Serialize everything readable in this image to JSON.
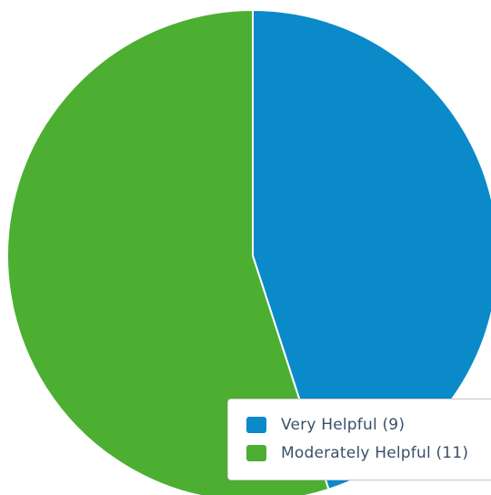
{
  "chart_data": {
    "type": "pie",
    "categories": [
      "Very Helpful",
      "Moderately Helpful"
    ],
    "values": [
      9,
      11
    ],
    "colors": [
      "#0a8ac8",
      "#4caf32"
    ],
    "legend": {
      "placement": "bottom-right",
      "items": [
        {
          "label": "Very Helpful (9)",
          "color": "#0a8ac8"
        },
        {
          "label": "Moderately Helpful (11)",
          "color": "#4caf32"
        }
      ]
    }
  }
}
